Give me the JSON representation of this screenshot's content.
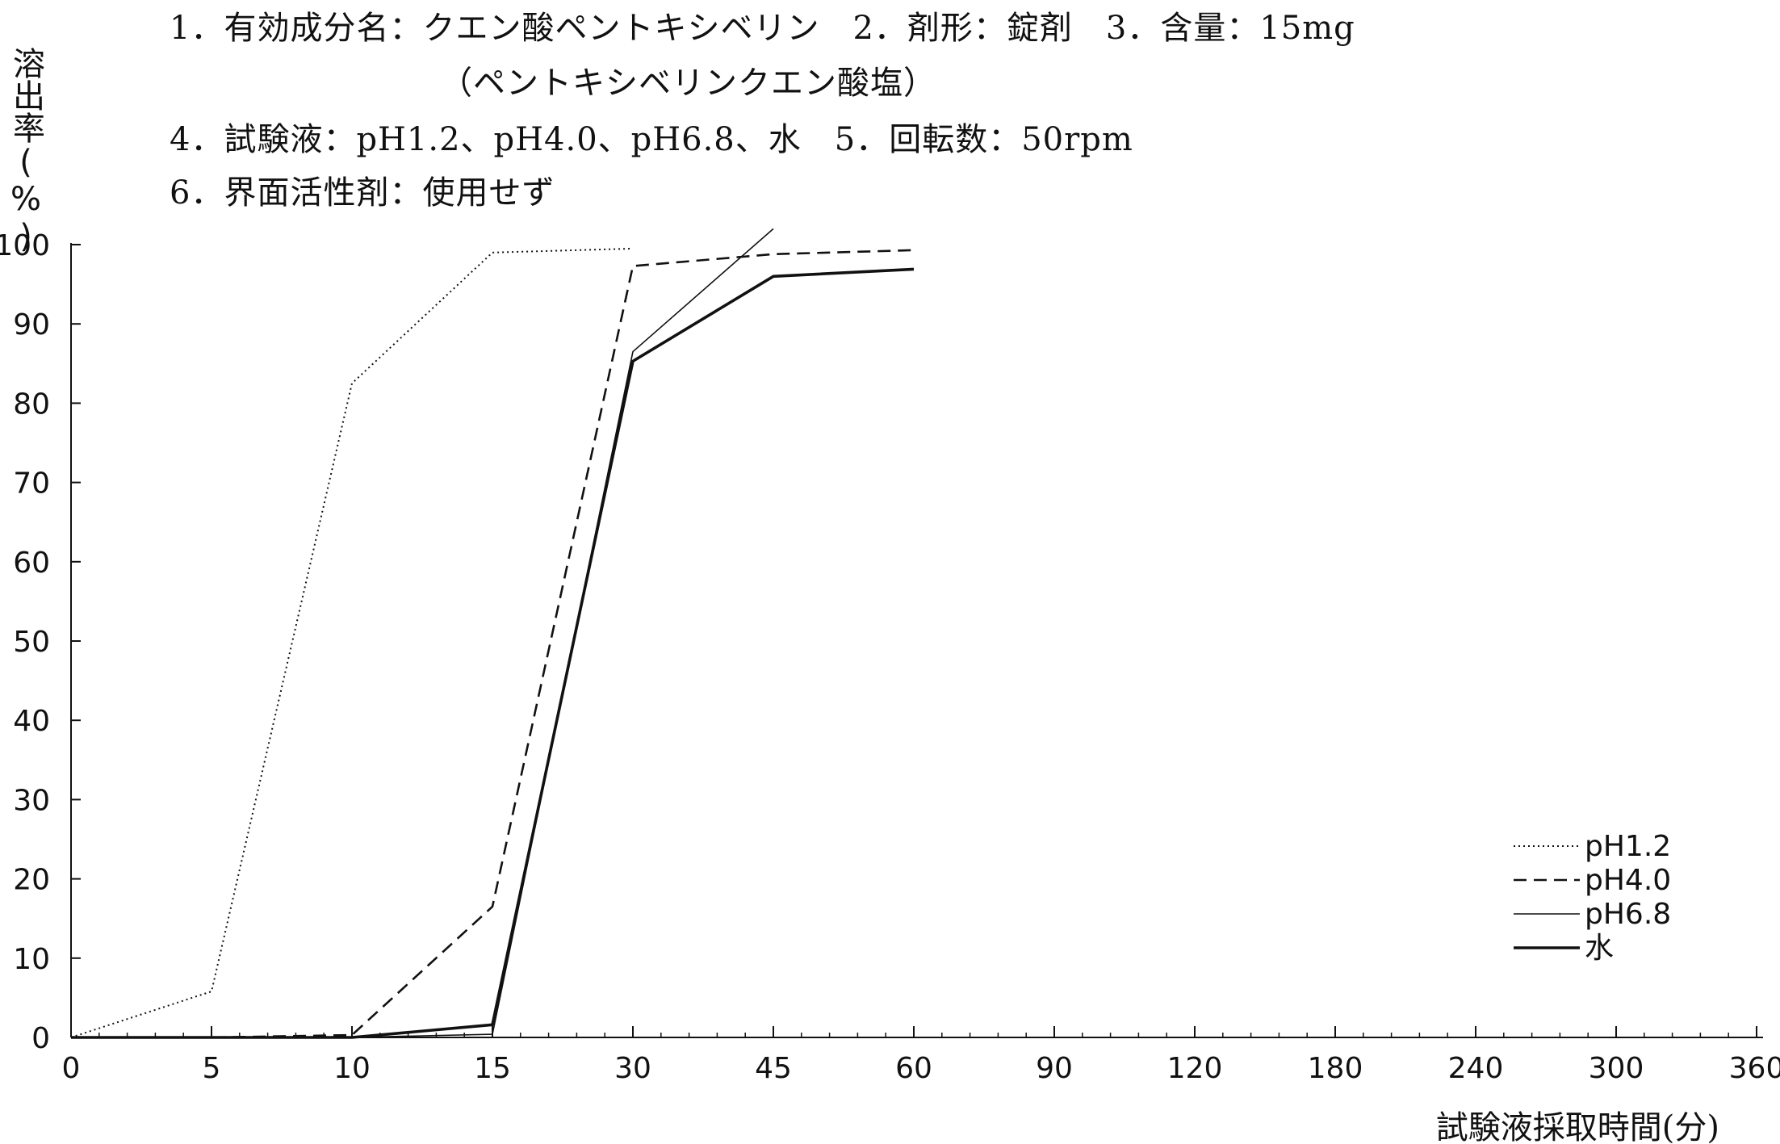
{
  "header": {
    "line1": "1．有効成分名：クエン酸ペントキシベリン　2．剤形：錠剤　3．含量：15mg",
    "line2": "（ペントキシベリンクエン酸塩）",
    "line3": "4．試験液：pH1.2、pH4.0、pH6.8、水　5．回転数：50rpm",
    "line4": "6．界面活性剤：使用せず"
  },
  "chart_data": {
    "type": "line",
    "title": "",
    "ylabel": "溶出率(%)",
    "xlabel": "試験液採取時間(分)",
    "ylim": [
      0,
      100
    ],
    "y_ticks": [
      "0",
      "10",
      "20",
      "30",
      "40",
      "50",
      "60",
      "70",
      "80",
      "90",
      "100"
    ],
    "categories": [
      "0",
      "5",
      "10",
      "15",
      "30",
      "45",
      "60",
      "90",
      "120",
      "180",
      "240",
      "300",
      "360"
    ],
    "series": [
      {
        "name": "pH1.2",
        "style": "dotted",
        "x": [
          "0",
          "5",
          "10",
          "15",
          "30"
        ],
        "values": [
          0,
          5.8,
          82.5,
          99.0,
          99.5
        ]
      },
      {
        "name": "pH4.0",
        "style": "dashed",
        "x": [
          "0",
          "5",
          "10",
          "15",
          "30",
          "45",
          "60"
        ],
        "values": [
          0,
          0,
          0.3,
          16.5,
          97.3,
          98.8,
          99.3
        ]
      },
      {
        "name": "pH6.8",
        "style": "thin",
        "x": [
          "0",
          "5",
          "10",
          "15",
          "30",
          "45"
        ],
        "values": [
          0,
          0,
          0,
          0.4,
          86.5,
          102.0
        ]
      },
      {
        "name": "水",
        "style": "bold",
        "x": [
          "0",
          "5",
          "10",
          "15",
          "30",
          "45",
          "60"
        ],
        "values": [
          0,
          0,
          0,
          1.6,
          85.3,
          96.0,
          96.9
        ]
      }
    ],
    "legend": "bottom-right",
    "grid": false
  }
}
